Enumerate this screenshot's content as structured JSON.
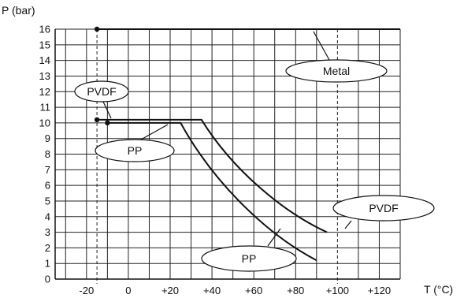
{
  "chart_data": {
    "type": "line",
    "xlabel": "T (°C)",
    "ylabel": "P (bar)",
    "xlim": [
      -35,
      130
    ],
    "ylim": [
      0,
      16
    ],
    "x_ticks": [
      "-20",
      "0",
      "+20",
      "+40",
      "+60",
      "+80",
      "+100",
      "+120"
    ],
    "x_tick_values": [
      -20,
      0,
      20,
      40,
      60,
      80,
      100,
      120
    ],
    "y_ticks": [
      "0",
      "1",
      "2",
      "3",
      "4",
      "5",
      "6",
      "7",
      "8",
      "9",
      "10",
      "11",
      "12",
      "13",
      "14",
      "15",
      "16"
    ],
    "dashed_x": [
      -15,
      100
    ],
    "grid": true,
    "series": [
      {
        "name": "Metal",
        "points": [
          [
            -15,
            16
          ],
          [
            130,
            16
          ]
        ],
        "start_marker": true
      },
      {
        "name": "PVDF",
        "points": [
          [
            -15,
            10.2
          ],
          [
            35,
            10.2
          ],
          [
            95,
            3
          ]
        ],
        "start_marker": true
      },
      {
        "name": "PP",
        "points": [
          [
            -10,
            10
          ],
          [
            25,
            10
          ],
          [
            90,
            1.2
          ]
        ],
        "start_marker": true
      }
    ],
    "callouts": [
      {
        "series": "Metal",
        "label": "Metal"
      },
      {
        "series": "PVDF",
        "label": "PVDF",
        "side": "left"
      },
      {
        "series": "PP",
        "label": "PP",
        "side": "left"
      },
      {
        "series": "PVDF",
        "label": "PVDF",
        "side": "right"
      },
      {
        "series": "PP",
        "label": "PP",
        "side": "right"
      }
    ]
  }
}
